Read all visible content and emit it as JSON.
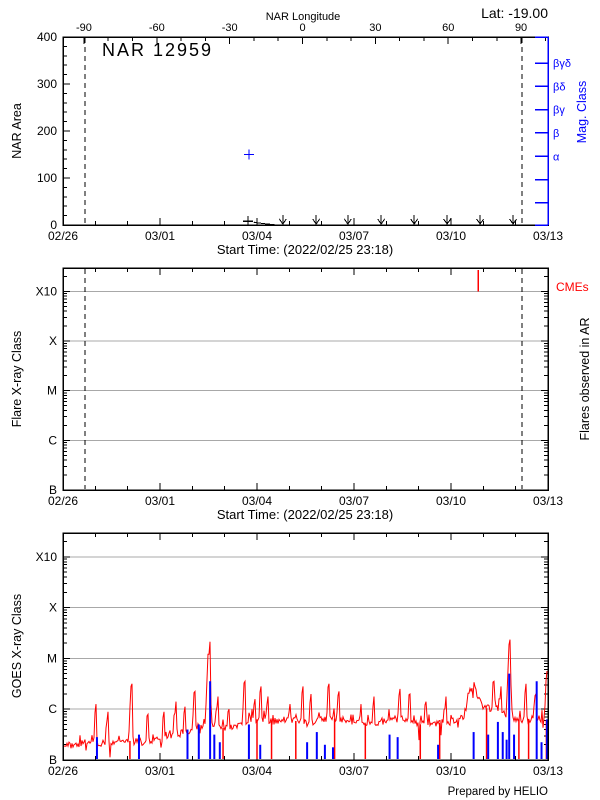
{
  "colors": {
    "blue": "#0000ff",
    "red": "#ff0000",
    "grid_gray": "#a8a8a8",
    "background": "#ffffff"
  },
  "header": {
    "lat_label": "Lat: -19.00",
    "prepared_by": "Prepared by HELIO"
  },
  "chart_data": [
    {
      "type": "scatter",
      "title": "NAR 12959",
      "ylabel": "NAR Area",
      "ylim": [
        0,
        400
      ],
      "ytick_values": [
        0,
        100,
        200,
        300,
        400
      ],
      "ytick_minor_step": 20,
      "top_axis": {
        "title": "NAR Longitude",
        "tick_values": [
          -90,
          -60,
          -30,
          0,
          30,
          60,
          90
        ],
        "tick_labels": [
          "-90",
          "-60",
          "-30",
          "0",
          "30",
          "60",
          "90"
        ],
        "minor_step_deg": 10
      },
      "right_axis": {
        "title": "Mag. Class",
        "tick_labels": [
          "βγδ",
          "βδ",
          "βγ",
          "β",
          "α",
          "",
          ""
        ]
      },
      "xaxis": {
        "title": "Start Time: (2022/02/25 23:18)",
        "tick_labels": [
          "02/26",
          "03/01",
          "03/04",
          "03/07",
          "03/10",
          "03/13"
        ],
        "tick_days": [
          0,
          3,
          6,
          9,
          12,
          15
        ],
        "span_days": 15
      },
      "limb_crossing_days": [
        0.68,
        14.2
      ],
      "area_points": [
        {
          "day": 5.75,
          "area": 150,
          "color": "blue",
          "marker": "plus"
        },
        {
          "day": 5.72,
          "area": 8,
          "color": "black",
          "marker": "plus"
        }
      ],
      "area_line_day_value": [
        [
          5.9,
          6
        ],
        [
          6.2,
          3
        ],
        [
          6.55,
          0.5
        ]
      ],
      "upper_limit_arrow_days": [
        6.8,
        7.83,
        8.81,
        9.84,
        10.86,
        11.88,
        12.9,
        13.92
      ]
    },
    {
      "type": "scatter",
      "ylabel": "Flare X-ray Class",
      "right_label": "Flares observed in AR",
      "ytick_labels": [
        "B",
        "C",
        "M",
        "X",
        "X10"
      ],
      "units": "log decades above class B (B=0, C=1, M=2, X=3, X10=4)",
      "gridline_levels": [
        1,
        2,
        3,
        4
      ],
      "flares": [],
      "cmes": {
        "label": "CMEs",
        "days": [
          12.84
        ]
      },
      "limb_crossing_days": [
        0.68,
        14.2
      ],
      "xaxis": {
        "title": "Start Time: (2022/02/25 23:18)",
        "tick_labels": [
          "02/26",
          "03/01",
          "03/04",
          "03/07",
          "03/10",
          "03/13"
        ],
        "tick_days": [
          0,
          3,
          6,
          9,
          12,
          15
        ],
        "span_days": 15
      }
    },
    {
      "type": "line",
      "ylabel": "GOES X-ray Class",
      "ytick_labels": [
        "B",
        "C",
        "M",
        "X",
        "X10"
      ],
      "units": "log decades above class B (B=0, C=1, M=2, X=3, X10=4)",
      "gridline_levels": [
        1,
        2,
        3,
        4
      ],
      "xaxis": {
        "tick_labels": [
          "02/26",
          "03/01",
          "03/04",
          "03/07",
          "03/10",
          "03/13"
        ],
        "tick_days": [
          0,
          3,
          6,
          9,
          12,
          15
        ],
        "span_days": 15
      },
      "goes_baseline": [
        [
          0,
          0.28
        ],
        [
          0.5,
          0.32
        ],
        [
          1,
          0.35
        ],
        [
          1.5,
          0.3
        ],
        [
          2,
          0.38
        ],
        [
          2.5,
          0.35
        ],
        [
          3,
          0.42
        ],
        [
          3.5,
          0.5
        ],
        [
          4,
          0.6
        ],
        [
          4.3,
          0.68
        ],
        [
          4.6,
          0.72
        ],
        [
          5,
          0.62
        ],
        [
          5.5,
          0.68
        ],
        [
          6,
          0.8
        ],
        [
          6.5,
          0.75
        ],
        [
          7,
          0.8
        ],
        [
          7.5,
          0.72
        ],
        [
          8,
          0.8
        ],
        [
          8.5,
          0.82
        ],
        [
          9,
          0.75
        ],
        [
          9.5,
          0.7
        ],
        [
          10,
          0.78
        ],
        [
          10.5,
          0.8
        ],
        [
          11,
          0.7
        ],
        [
          11.5,
          0.72
        ],
        [
          12,
          0.75
        ],
        [
          12.4,
          0.85
        ],
        [
          12.55,
          1.3
        ],
        [
          12.7,
          1.48
        ],
        [
          12.9,
          1.15
        ],
        [
          13.1,
          1.02
        ],
        [
          13.4,
          1.0
        ],
        [
          13.8,
          0.85
        ],
        [
          14.2,
          0.8
        ],
        [
          14.6,
          0.82
        ],
        [
          15,
          0.78
        ]
      ],
      "noise_amplitude": 0.14,
      "flare_spikes": [
        [
          1.0,
          1.1
        ],
        [
          1.35,
          0.95
        ],
        [
          2.1,
          1.5
        ],
        [
          2.6,
          0.9
        ],
        [
          3.1,
          0.95
        ],
        [
          3.45,
          1.15
        ],
        [
          3.75,
          1.05
        ],
        [
          4.05,
          1.35
        ],
        [
          4.5,
          2.33
        ],
        [
          4.75,
          1.25
        ],
        [
          5.1,
          1.0
        ],
        [
          5.6,
          1.55
        ],
        [
          5.9,
          1.2
        ],
        [
          6.1,
          1.45
        ],
        [
          6.3,
          1.25
        ],
        [
          7.0,
          1.1
        ],
        [
          7.4,
          1.45
        ],
        [
          7.65,
          1.3
        ],
        [
          8.2,
          1.5
        ],
        [
          8.5,
          1.35
        ],
        [
          9.2,
          1.1
        ],
        [
          9.6,
          1.25
        ],
        [
          10.4,
          1.4
        ],
        [
          10.7,
          1.3
        ],
        [
          11.2,
          1.15
        ],
        [
          11.8,
          1.25
        ],
        [
          13.3,
          1.55
        ],
        [
          13.5,
          1.45
        ],
        [
          13.8,
          2.37
        ],
        [
          14.3,
          1.5
        ],
        [
          14.6,
          1.3
        ],
        [
          14.95,
          1.75
        ]
      ],
      "data_gap_days": [
        2.07,
        4.95,
        6.0,
        6.45,
        7.2,
        8.4,
        9.35,
        11.05,
        11.65,
        13.1,
        14.1,
        14.4,
        14.95
      ],
      "blue_event_bars": [
        [
          1.05,
          0.45
        ],
        [
          2.35,
          0.5
        ],
        [
          3.85,
          0.6
        ],
        [
          4.2,
          0.7
        ],
        [
          4.55,
          1.55
        ],
        [
          4.68,
          0.5
        ],
        [
          4.85,
          0.35
        ],
        [
          5.75,
          0.7
        ],
        [
          6.1,
          0.3
        ],
        [
          7.55,
          0.35
        ],
        [
          7.85,
          0.55
        ],
        [
          8.1,
          0.3
        ],
        [
          8.35,
          0.25
        ],
        [
          10.1,
          0.5
        ],
        [
          10.35,
          0.45
        ],
        [
          11.6,
          0.3
        ],
        [
          12.7,
          0.55
        ],
        [
          13.15,
          0.5
        ],
        [
          13.45,
          0.75
        ],
        [
          13.6,
          0.55
        ],
        [
          13.72,
          0.4
        ],
        [
          13.8,
          1.7
        ],
        [
          13.95,
          0.5
        ],
        [
          14.65,
          1.55
        ],
        [
          14.8,
          0.35
        ],
        [
          14.97,
          0.8
        ]
      ]
    }
  ]
}
